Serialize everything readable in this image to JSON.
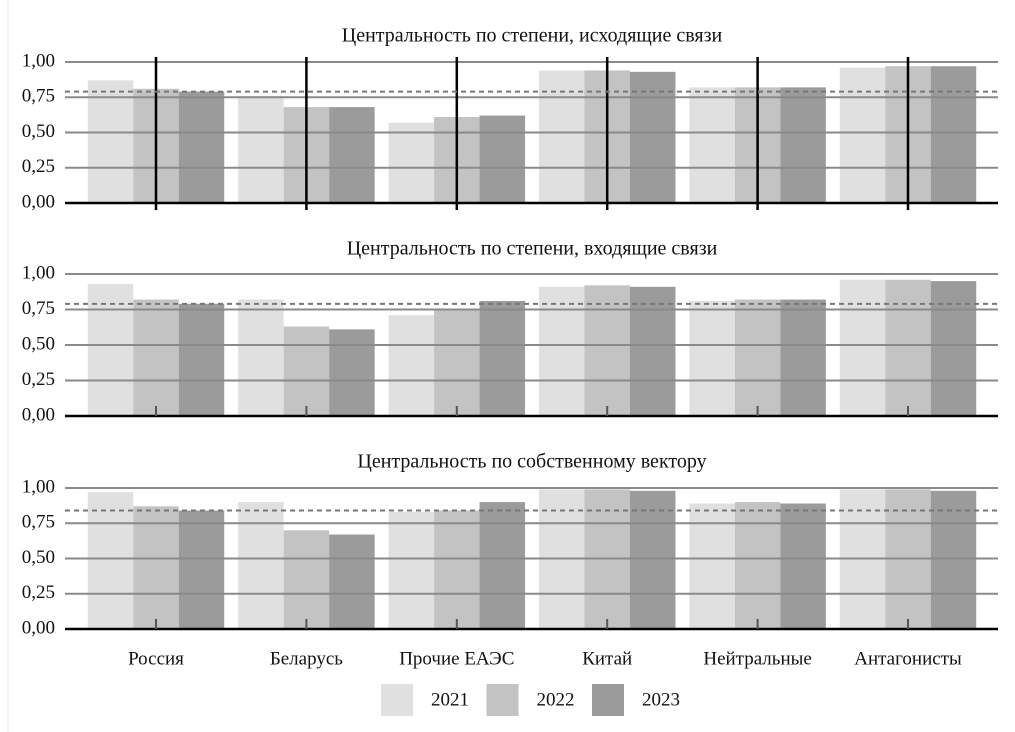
{
  "chart_data": [
    {
      "type": "bar",
      "title": "Центральность по степени, исходящие связи",
      "series": [
        {
          "color": "#e0e0e0",
          "values": [
            0.87,
            0.76,
            0.57,
            0.94,
            0.82,
            0.96
          ]
        },
        {
          "color": "#c3c3c3",
          "values": [
            0.81,
            0.68,
            0.61,
            0.94,
            0.82,
            0.97
          ]
        },
        {
          "color": "#9b9b9b",
          "values": [
            0.79,
            0.68,
            0.62,
            0.93,
            0.82,
            0.97
          ]
        }
      ],
      "reference_line": 0.79,
      "ylim": [
        0,
        1
      ],
      "yticks": [
        {
          "value": 0,
          "label": "0,00"
        },
        {
          "value": 0.25,
          "label": "0,25"
        },
        {
          "value": 0.5,
          "label": "0,50"
        },
        {
          "value": 0.75,
          "label": "0,75"
        },
        {
          "value": 1,
          "label": "1,00"
        }
      ],
      "grid": true
    },
    {
      "type": "bar",
      "title": "Центральность по степени, входящие связи",
      "series": [
        {
          "color": "#e0e0e0",
          "values": [
            0.93,
            0.82,
            0.71,
            0.91,
            0.81,
            0.96
          ]
        },
        {
          "color": "#c3c3c3",
          "values": [
            0.82,
            0.63,
            0.75,
            0.92,
            0.82,
            0.96
          ]
        },
        {
          "color": "#9b9b9b",
          "values": [
            0.79,
            0.61,
            0.81,
            0.91,
            0.82,
            0.95
          ]
        }
      ],
      "reference_line": 0.79,
      "ylim": [
        0,
        1
      ],
      "yticks": [
        {
          "value": 0,
          "label": "0,00"
        },
        {
          "value": 0.25,
          "label": "0,25"
        },
        {
          "value": 0.5,
          "label": "0,50"
        },
        {
          "value": 0.75,
          "label": "0,75"
        },
        {
          "value": 1,
          "label": "1,00"
        }
      ],
      "grid": true
    },
    {
      "type": "bar",
      "title": "Центральность по собственному вектору",
      "categories": [
        "Россия",
        "Беларусь",
        "Прочие ЕАЭС",
        "Китай",
        "Нейтральные",
        "Антагонисты"
      ],
      "series": [
        {
          "name": "2021",
          "color": "#e0e0e0",
          "values": [
            0.97,
            0.9,
            0.83,
            0.99,
            0.89,
            0.99
          ]
        },
        {
          "name": "2022",
          "color": "#c3c3c3",
          "values": [
            0.87,
            0.7,
            0.84,
            0.99,
            0.9,
            0.99
          ]
        },
        {
          "name": "2023",
          "color": "#9b9b9b",
          "values": [
            0.84,
            0.67,
            0.9,
            0.98,
            0.89,
            0.98
          ]
        }
      ],
      "reference_line": 0.84,
      "ylim": [
        0,
        1
      ],
      "yticks": [
        {
          "value": 0,
          "label": "0,00"
        },
        {
          "value": 0.25,
          "label": "0,25"
        },
        {
          "value": 0.5,
          "label": "0,50"
        },
        {
          "value": 0.75,
          "label": "0,75"
        },
        {
          "value": 1,
          "label": "1,00"
        }
      ],
      "grid": true
    }
  ]
}
